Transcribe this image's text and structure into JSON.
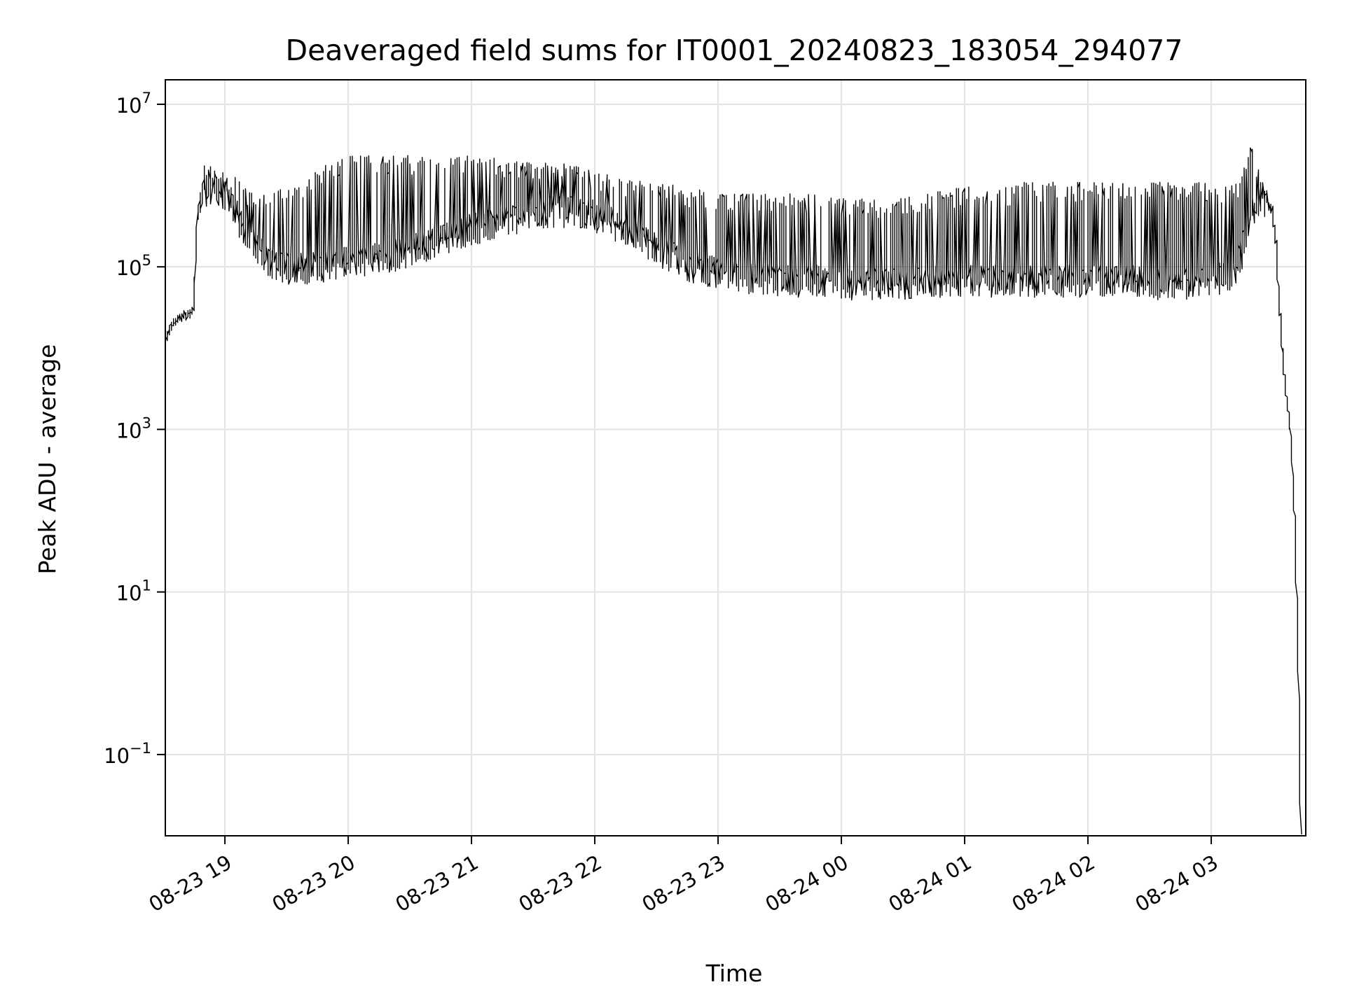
{
  "chart_data": {
    "type": "line",
    "title": "Deaveraged field sums for IT0001_20240823_183054_294077",
    "xlabel": "Time",
    "ylabel": "Peak ADU - average",
    "y_scale": "log",
    "ylim": [
      0.01,
      20000000
    ],
    "xlim": [
      "2024-08-23 18:31",
      "2024-08-24 03:46"
    ],
    "grid": true,
    "line_color": "#000000",
    "x_ticks": [
      {
        "value": "2024-08-23 19:00",
        "label": "08-23 19"
      },
      {
        "value": "2024-08-23 20:00",
        "label": "08-23 20"
      },
      {
        "value": "2024-08-23 21:00",
        "label": "08-23 21"
      },
      {
        "value": "2024-08-23 22:00",
        "label": "08-23 22"
      },
      {
        "value": "2024-08-23 23:00",
        "label": "08-23 23"
      },
      {
        "value": "2024-08-24 00:00",
        "label": "08-24 00"
      },
      {
        "value": "2024-08-24 01:00",
        "label": "08-24 01"
      },
      {
        "value": "2024-08-24 02:00",
        "label": "08-24 02"
      },
      {
        "value": "2024-08-24 03:00",
        "label": "08-24 03"
      }
    ],
    "y_ticks": [
      {
        "value": 0.1,
        "base": "10",
        "exp": "−1"
      },
      {
        "value": 10,
        "base": "10",
        "exp": "1"
      },
      {
        "value": 1000,
        "base": "10",
        "exp": "3"
      },
      {
        "value": 100000,
        "base": "10",
        "exp": "5"
      },
      {
        "value": 10000000,
        "base": "10",
        "exp": "7"
      }
    ],
    "series": [
      {
        "x": [
          "2024-08-23 18:31",
          "2024-08-23 18:35",
          "2024-08-23 18:40",
          "2024-08-23 18:45",
          "2024-08-23 18:47",
          "2024-08-23 18:50",
          "2024-08-23 18:55",
          "2024-08-23 19:00",
          "2024-08-23 19:05",
          "2024-08-23 19:10",
          "2024-08-23 19:15",
          "2024-08-23 19:20",
          "2024-08-23 19:30",
          "2024-08-23 19:40",
          "2024-08-23 19:50",
          "2024-08-23 20:00",
          "2024-08-23 20:10",
          "2024-08-23 20:20",
          "2024-08-23 20:30",
          "2024-08-23 20:40",
          "2024-08-23 20:50",
          "2024-08-23 21:00",
          "2024-08-23 21:10",
          "2024-08-23 21:20",
          "2024-08-23 21:30",
          "2024-08-23 21:40",
          "2024-08-23 21:50",
          "2024-08-23 22:00",
          "2024-08-23 22:10",
          "2024-08-23 22:20",
          "2024-08-23 22:30",
          "2024-08-23 22:40",
          "2024-08-23 22:50",
          "2024-08-23 23:00",
          "2024-08-23 23:10",
          "2024-08-23 23:20",
          "2024-08-23 23:30",
          "2024-08-23 23:40",
          "2024-08-23 23:50",
          "2024-08-24 00:00",
          "2024-08-24 00:10",
          "2024-08-24 00:20",
          "2024-08-24 00:30",
          "2024-08-24 00:40",
          "2024-08-24 00:50",
          "2024-08-24 01:00",
          "2024-08-24 01:10",
          "2024-08-24 01:20",
          "2024-08-24 01:30",
          "2024-08-24 01:40",
          "2024-08-24 01:50",
          "2024-08-24 02:00",
          "2024-08-24 02:10",
          "2024-08-24 02:20",
          "2024-08-24 02:30",
          "2024-08-24 02:40",
          "2024-08-24 02:50",
          "2024-08-24 03:00",
          "2024-08-24 03:10",
          "2024-08-24 03:15",
          "2024-08-24 03:20",
          "2024-08-24 03:25",
          "2024-08-24 03:30",
          "2024-08-24 03:32",
          "2024-08-24 03:35",
          "2024-08-24 03:37",
          "2024-08-24 03:39",
          "2024-08-24 03:41",
          "2024-08-24 03:43",
          "2024-08-24 03:44"
        ],
        "baseline": [
          12000,
          20000,
          25000,
          28000,
          400000,
          900000,
          1000000,
          800000,
          500000,
          300000,
          200000,
          130000,
          100000,
          100000,
          110000,
          120000,
          130000,
          140000,
          160000,
          200000,
          250000,
          300000,
          350000,
          400000,
          450000,
          500000,
          500000,
          450000,
          350000,
          250000,
          180000,
          130000,
          100000,
          90000,
          80000,
          75000,
          70000,
          70000,
          70000,
          65000,
          65000,
          65000,
          65000,
          65000,
          70000,
          70000,
          70000,
          70000,
          70000,
          70000,
          70000,
          70000,
          70000,
          70000,
          65000,
          65000,
          65000,
          70000,
          80000,
          150000,
          500000,
          800000,
          500000,
          200000,
          10000,
          2500,
          1000,
          100,
          1,
          0.01
        ],
        "peaks": [
          15000,
          22000,
          28000,
          30000,
          1200000,
          2600000,
          1600000,
          1500000,
          1300000,
          1000000,
          900000,
          800000,
          1000000,
          1200000,
          2000000,
          2300000,
          2400000,
          2400000,
          2400000,
          2400000,
          2400000,
          2300000,
          2200000,
          2100000,
          2000000,
          2000000,
          1800000,
          1500000,
          1300000,
          1200000,
          1100000,
          1000000,
          900000,
          800000,
          800000,
          800000,
          800000,
          800000,
          800000,
          700000,
          700000,
          700000,
          700000,
          800000,
          900000,
          1000000,
          1000000,
          1000000,
          1100000,
          1100000,
          1100000,
          1100000,
          1100000,
          1100000,
          1100000,
          1100000,
          1100000,
          1100000,
          1000000,
          1200000,
          3000000,
          1200000,
          800000,
          300000,
          12000,
          3000,
          1200,
          100,
          1,
          0.01
        ]
      }
    ]
  }
}
